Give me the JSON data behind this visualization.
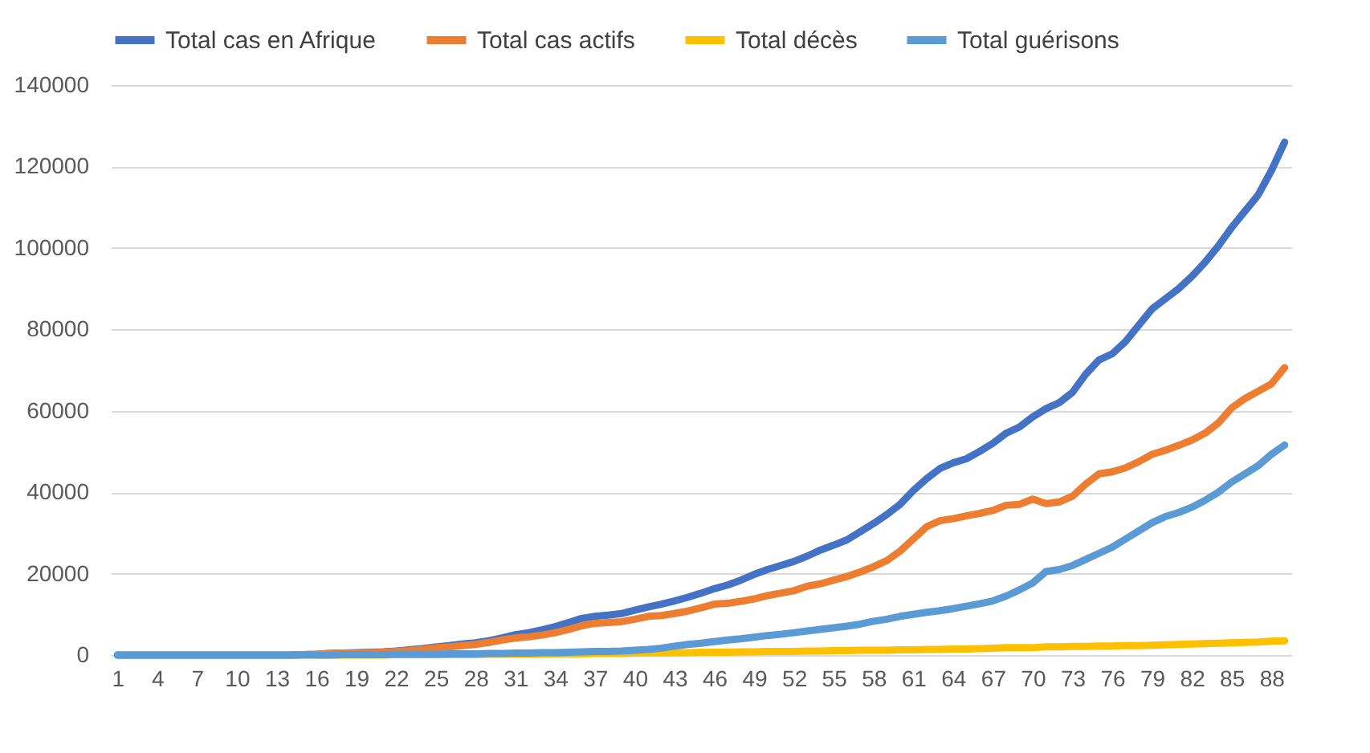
{
  "chart_data": {
    "type": "line",
    "categories": [
      "1",
      null,
      null,
      "4",
      null,
      null,
      "7",
      null,
      null,
      "10",
      null,
      null,
      "13",
      null,
      null,
      "16",
      null,
      null,
      "19",
      null,
      null,
      "22",
      null,
      null,
      "25",
      null,
      null,
      "28",
      null,
      null,
      "31",
      null,
      null,
      "34",
      null,
      null,
      "37",
      null,
      null,
      "40",
      null,
      null,
      "43",
      null,
      null,
      "46",
      null,
      null,
      "49",
      null,
      null,
      "52",
      null,
      null,
      "55",
      null,
      null,
      "58",
      null,
      null,
      "61",
      null,
      null,
      "64",
      null,
      null,
      "67",
      null,
      null,
      "70",
      null,
      null,
      "73",
      null,
      null,
      "76",
      null,
      null,
      "79",
      null,
      null,
      "82",
      null,
      null,
      "85",
      null,
      null,
      "88",
      null
    ],
    "series": [
      {
        "name": "Total cas en Afrique",
        "color": "#4472c4",
        "values": [
          0,
          0,
          0,
          0,
          0,
          0,
          0,
          0,
          0,
          0,
          0,
          0,
          0,
          0,
          100,
          200,
          400,
          500,
          600,
          700,
          800,
          1000,
          1300,
          1600,
          2000,
          2300,
          2700,
          3000,
          3500,
          4200,
          5000,
          5500,
          6200,
          7000,
          8000,
          9000,
          9500,
          9800,
          10200,
          11000,
          11800,
          12500,
          13300,
          14200,
          15200,
          16300,
          17200,
          18400,
          19800,
          21000,
          22000,
          23000,
          24300,
          25800,
          27000,
          28300,
          30300,
          32300,
          34500,
          37000,
          40400,
          43300,
          45800,
          47200,
          48200,
          50000,
          52000,
          54500,
          56000,
          58500,
          60500,
          62000,
          64500,
          69000,
          72500,
          74000,
          77000,
          81000,
          85000,
          87500,
          90000,
          93000,
          96500,
          100500,
          105000,
          109000,
          113000,
          119000,
          126000
        ]
      },
      {
        "name": "Total cas actifs",
        "color": "#ed7d31",
        "values": [
          null,
          null,
          null,
          null,
          null,
          null,
          null,
          null,
          null,
          null,
          null,
          null,
          null,
          0,
          100,
          200,
          400,
          500,
          500,
          600,
          700,
          900,
          1100,
          1400,
          1800,
          2000,
          2300,
          2600,
          3100,
          3700,
          4200,
          4500,
          4900,
          5500,
          6300,
          7200,
          7800,
          8000,
          8200,
          8800,
          9500,
          9700,
          10200,
          10800,
          11600,
          12500,
          12700,
          13200,
          13800,
          14600,
          15200,
          15800,
          16900,
          17500,
          18400,
          19300,
          20400,
          21700,
          23200,
          25500,
          28500,
          31500,
          33000,
          33500,
          34200,
          34800,
          35500,
          36800,
          37000,
          38300,
          37200,
          37600,
          39000,
          42000,
          44500,
          45000,
          46000,
          47500,
          49300,
          50300,
          51500,
          52800,
          54500,
          57000,
          60700,
          63000,
          64800,
          66600,
          70600
        ]
      },
      {
        "name": "Total décès",
        "color": "#ffc000",
        "values": [
          null,
          null,
          null,
          null,
          null,
          null,
          null,
          null,
          null,
          null,
          null,
          null,
          null,
          null,
          null,
          0,
          0,
          0,
          0,
          0,
          0,
          100,
          100,
          100,
          100,
          100,
          100,
          100,
          200,
          200,
          200,
          200,
          200,
          300,
          300,
          300,
          400,
          400,
          400,
          500,
          500,
          500,
          600,
          600,
          700,
          700,
          700,
          800,
          800,
          900,
          900,
          900,
          1000,
          1000,
          1100,
          1100,
          1200,
          1200,
          1200,
          1300,
          1300,
          1400,
          1400,
          1500,
          1500,
          1600,
          1700,
          1800,
          1800,
          1800,
          2000,
          2000,
          2100,
          2100,
          2200,
          2200,
          2300,
          2300,
          2400,
          2500,
          2600,
          2700,
          2800,
          2900,
          3000,
          3100,
          3200,
          3400,
          3500
        ]
      },
      {
        "name": "Total guérisons",
        "color": "#5b9bd5",
        "values": [
          0,
          0,
          0,
          0,
          0,
          0,
          0,
          0,
          0,
          0,
          0,
          0,
          0,
          0,
          0,
          0,
          0,
          100,
          100,
          100,
          100,
          200,
          200,
          200,
          200,
          300,
          300,
          300,
          400,
          400,
          500,
          500,
          600,
          600,
          700,
          800,
          900,
          900,
          1000,
          1200,
          1400,
          1700,
          2200,
          2600,
          2900,
          3300,
          3700,
          4000,
          4400,
          4800,
          5100,
          5500,
          5900,
          6300,
          6700,
          7100,
          7600,
          8300,
          8800,
          9500,
          10000,
          10500,
          10900,
          11400,
          12000,
          12600,
          13300,
          14500,
          16000,
          17700,
          20500,
          21000,
          22000,
          23500,
          25000,
          26500,
          28500,
          30500,
          32500,
          34000,
          35000,
          36300,
          38000,
          40000,
          42500,
          44500,
          46500,
          49300,
          51600
        ]
      }
    ],
    "ylim": [
      0,
      140000
    ],
    "yticks": [
      0,
      20000,
      40000,
      60000,
      80000,
      100000,
      120000,
      140000
    ],
    "grid": "y",
    "legend": "top",
    "line_style": "solid",
    "marker": "none"
  }
}
